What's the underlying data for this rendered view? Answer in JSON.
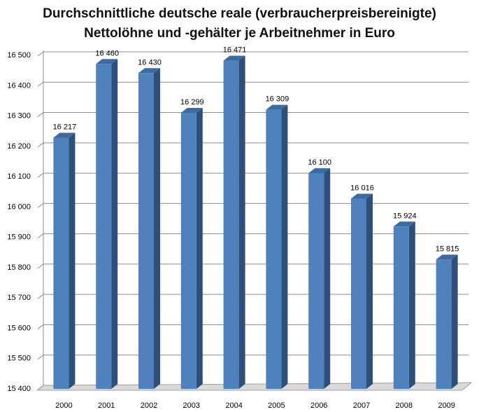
{
  "chart_data": {
    "type": "bar",
    "title_line1": "Durchschnittliche deutsche reale (verbraucherpreisbereinigte)",
    "title_line2": "Nettolöhne und -gehälter je Arbeitnehmer in Euro",
    "categories": [
      "2000",
      "2001",
      "2002",
      "2003",
      "2004",
      "2005",
      "2006",
      "2007",
      "2008",
      "2009"
    ],
    "values": [
      16217,
      16460,
      16430,
      16299,
      16471,
      16309,
      16100,
      16016,
      15924,
      15815
    ],
    "value_labels": [
      "16 217",
      "16 460",
      "16 430",
      "16 299",
      "16 471",
      "16 309",
      "16 100",
      "16 016",
      "15 924",
      "15 815"
    ],
    "y_ticks": [
      15400,
      15500,
      15600,
      15700,
      15800,
      15900,
      16000,
      16100,
      16200,
      16300,
      16400,
      16500
    ],
    "y_tick_labels": [
      "15 400",
      "15 500",
      "15 600",
      "15 700",
      "15 800",
      "15 900",
      "16 000",
      "16 100",
      "16 200",
      "16 300",
      "16 400",
      "16 500"
    ],
    "ylim": [
      15400,
      16500
    ],
    "xlabel": "",
    "ylabel": "",
    "grid": true,
    "legend": "none",
    "colors": {
      "bar_front": "#4f81bd",
      "bar_side": "#2d4f78",
      "bar_top": "#3d6aa3",
      "grid": "#8c8c8c",
      "floor": "#d9d9d9"
    }
  }
}
